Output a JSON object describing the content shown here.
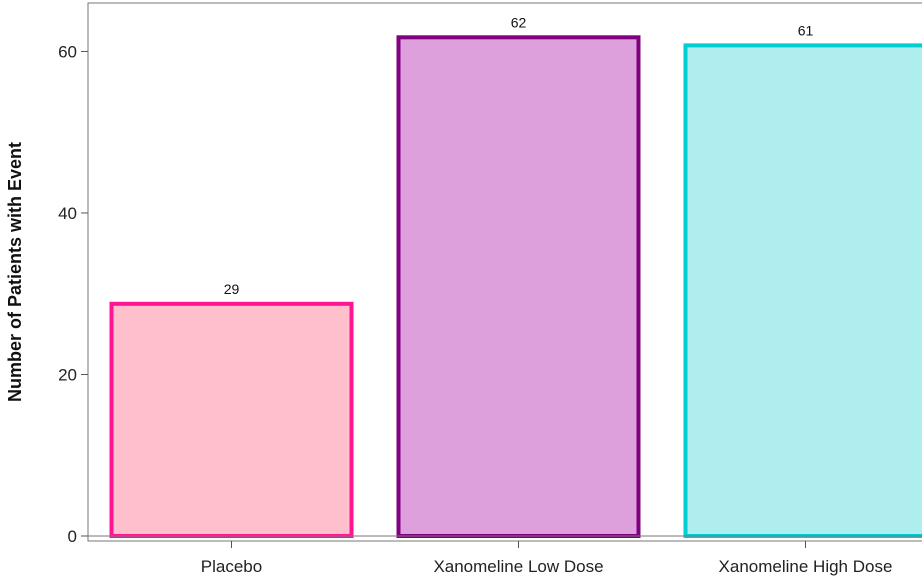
{
  "chart_data": {
    "type": "bar",
    "categories": [
      "Placebo",
      "Xanomeline Low Dose",
      "Xanomeline High Dose"
    ],
    "values": [
      29,
      62,
      61
    ],
    "data_labels": [
      "29",
      "62",
      "61"
    ],
    "title": "",
    "xlabel": "",
    "ylabel": "Number of Patients with Event",
    "ylim": [
      0,
      66
    ],
    "yticks": [
      0,
      20,
      40,
      60
    ],
    "ytick_labels": [
      "0",
      "20",
      "40",
      "60"
    ],
    "grid": false,
    "colors": {
      "fills": [
        "#FFC0CB",
        "#DDA0DD",
        "#AFEEEE"
      ],
      "strokes": [
        "#FF1493",
        "#800080",
        "#00CED1"
      ]
    }
  }
}
